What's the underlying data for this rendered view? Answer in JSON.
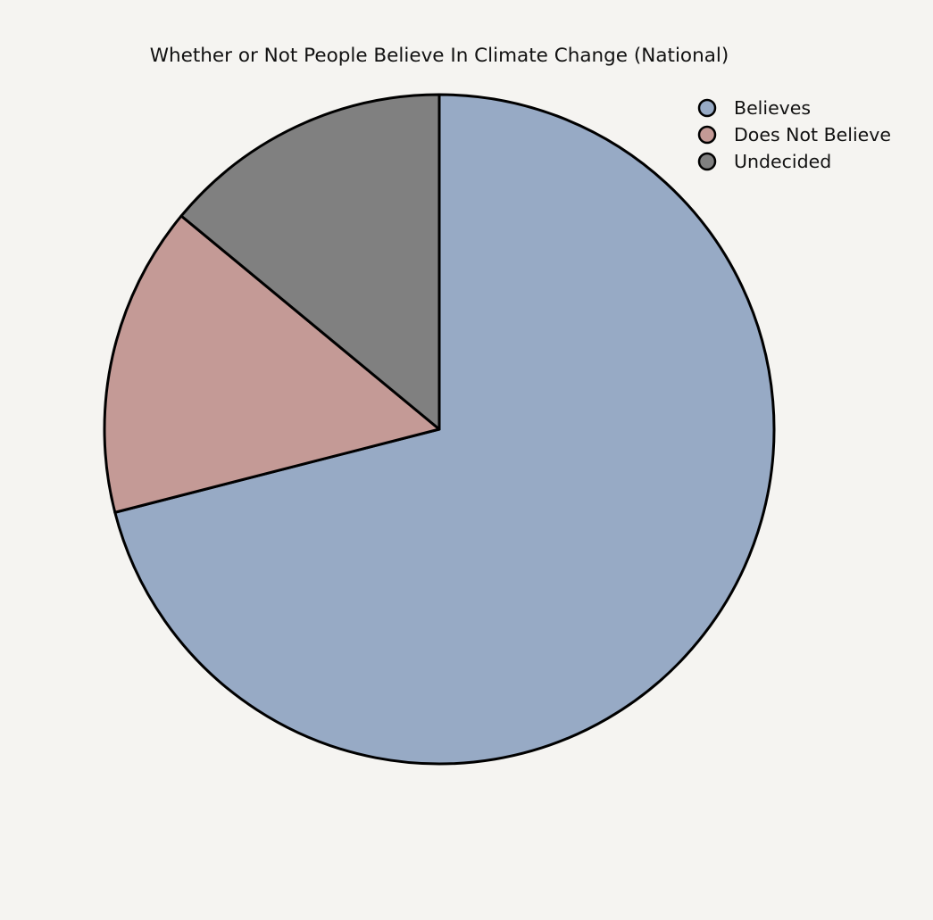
{
  "chart_data": {
    "type": "pie",
    "title": "Whether or Not People Believe In Climate Change (National)",
    "categories": [
      "Believes",
      "Does Not Believe",
      "Undecided"
    ],
    "values": [
      71,
      15,
      14
    ],
    "colors": [
      "#97aac5",
      "#c49a96",
      "#808080"
    ],
    "start": "top",
    "direction": "clockwise",
    "edge_color": "#000000",
    "legend": {
      "position": "top-right",
      "entries": [
        "Believes",
        "Does Not Believe",
        "Undecided"
      ]
    }
  }
}
